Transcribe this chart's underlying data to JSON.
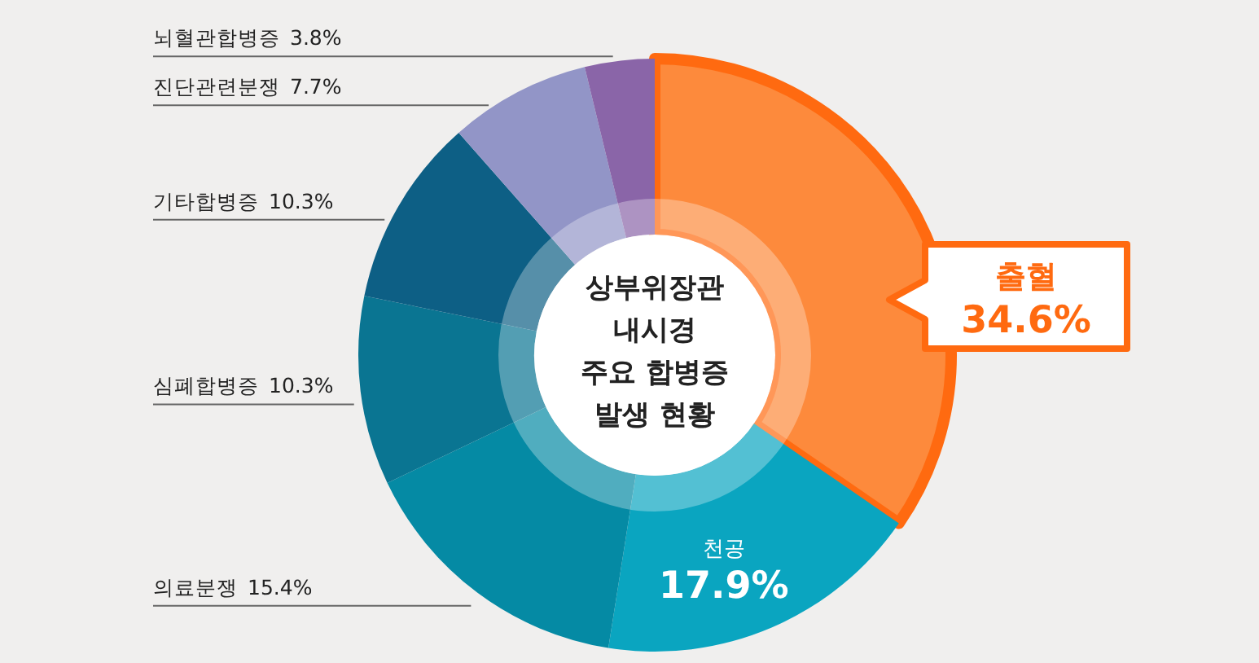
{
  "chart_data": {
    "type": "donut",
    "title": "상부위장관 내시경 주요 합병증 발생 현황",
    "categories": [
      "출혈",
      "천공",
      "의료분쟁",
      "심폐합병증",
      "기타합병증",
      "진단관련분쟁",
      "뇌혈관합병증"
    ],
    "values": [
      34.6,
      17.9,
      15.4,
      10.3,
      10.3,
      7.7,
      3.8
    ],
    "colors": [
      "#fd8a3c",
      "#0aa5c0",
      "#058aa4",
      "#0a7592",
      "#0d5f85",
      "#9295c7",
      "#8a65a8"
    ],
    "value_labels": [
      "34.6%",
      "17.9%",
      "15.4%",
      "10.3%",
      "10.3%",
      "7.7%",
      "3.8%"
    ]
  }
}
